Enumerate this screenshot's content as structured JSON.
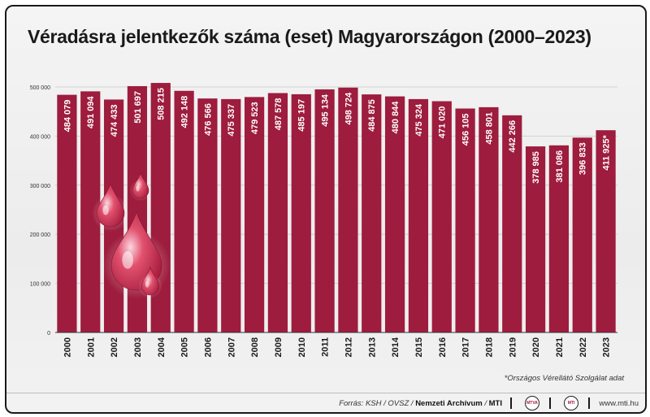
{
  "chart_data": {
    "type": "bar",
    "title": "Véradásra jelentkezők száma (eset) Magyarországon (2000–2023)",
    "categories": [
      "2000",
      "2001",
      "2002",
      "2003",
      "2004",
      "2005",
      "2006",
      "2007",
      "2008",
      "2009",
      "2010",
      "2011",
      "2012",
      "2013",
      "2014",
      "2015",
      "2016",
      "2017",
      "2018",
      "2019",
      "2020",
      "2021",
      "2022",
      "2023"
    ],
    "values": [
      484079,
      491094,
      474433,
      501697,
      508215,
      492148,
      476566,
      475337,
      479523,
      487578,
      485197,
      495134,
      498724,
      484875,
      480844,
      475324,
      471020,
      456105,
      458801,
      442266,
      378985,
      381086,
      396833,
      411925
    ],
    "value_labels": [
      "484 079",
      "491 094",
      "474 433",
      "501 697",
      "508 215",
      "492 148",
      "476 566",
      "475 337",
      "479 523",
      "487 578",
      "485 197",
      "495 134",
      "498 724",
      "484 875",
      "480 844",
      "475 324",
      "471 020",
      "456 105",
      "458 801",
      "442 266",
      "378 985",
      "381 086",
      "396 833",
      "411 925*"
    ],
    "ylim": [
      0,
      500000
    ],
    "yticks": [
      0,
      100000,
      200000,
      300000,
      400000,
      500000
    ],
    "ytick_labels": [
      "0",
      "100 000",
      "200 000",
      "300 000",
      "400 000",
      "500 000"
    ],
    "xlabel": "",
    "ylabel": "",
    "grid": true,
    "bar_color": "#9e1c3d"
  },
  "footnote": "*Országos Vérellátó Szolgálat adat",
  "footer": {
    "source_prefix": "Forrás: KSH / OVSZ / ",
    "source_archive": "Nemzeti Archívum",
    "source_sep": " / ",
    "source_mti": "MTI",
    "logo1": "MTVA",
    "logo2": "MTI",
    "website": "www.mti.hu"
  }
}
